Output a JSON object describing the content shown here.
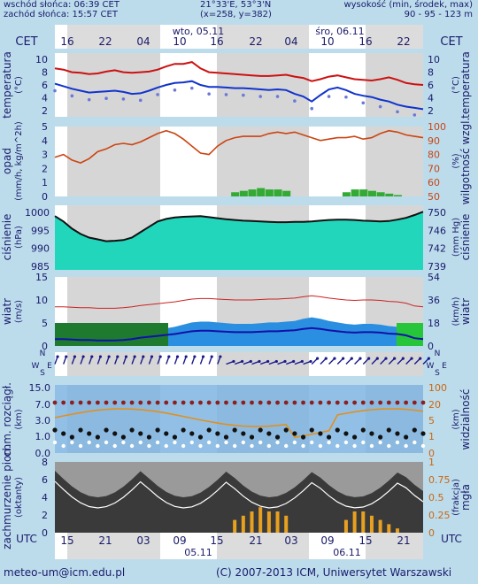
{
  "header": {
    "sunrise": "wschód słońca: 06:39 CET",
    "sunset": "zachód słońca: 15:57 CET",
    "coords": "21°33'E, 53°3'N",
    "grid": "(x=258, y=382)",
    "elevation_label": "wysokość (min, środek, max)",
    "elevation_values": "90 - 95 - 123 m"
  },
  "timezone_top": "CET",
  "timezone_bottom": "UTC",
  "top_hour_labels": [
    "16",
    "22",
    "04",
    "10",
    "16",
    "22",
    "04",
    "10",
    "16",
    "22"
  ],
  "top_date_labels": [
    "wto, 05.11",
    "śro, 06.11"
  ],
  "bottom_hour_labels": [
    "15",
    "21",
    "03",
    "09",
    "15",
    "21",
    "03",
    "09",
    "15",
    "21"
  ],
  "bottom_date_labels": [
    "05.11",
    "06.11"
  ],
  "panels": {
    "temperature": {
      "left_label": "temperatura",
      "left_unit": "(°C)",
      "right_label": "temperatura",
      "right_unit": "(°C)",
      "ticks": [
        "10",
        "8",
        "6",
        "4",
        "2"
      ]
    },
    "precip": {
      "left_label": "opad",
      "left_unit": "(mm/h, kg/m^2h)",
      "right_label": "wilgotność wzgl.",
      "right_unit": "(%)",
      "ticks_left": [
        "5",
        "4",
        "3",
        "2",
        "1",
        "0"
      ],
      "ticks_right": [
        "100",
        "90",
        "80",
        "70",
        "60",
        "50"
      ]
    },
    "pressure": {
      "left_label": "ciśnienie",
      "left_unit": "(hPa)",
      "right_label": "ciśnienie",
      "right_unit": "(mm Hg)",
      "ticks_left": [
        "1000",
        "995",
        "990",
        "985"
      ],
      "ticks_right": [
        "750",
        "746",
        "742",
        "739"
      ]
    },
    "wind": {
      "left_label": "wiatr",
      "left_unit": "(m/s)",
      "right_label": "wiatr",
      "right_unit": "(km/h)",
      "ticks_left": [
        "15",
        "10",
        "5",
        "0"
      ],
      "ticks_right": [
        "54",
        "36",
        "18",
        "0"
      ]
    },
    "winddir": {
      "letters": [
        "W",
        "S",
        "N",
        "E"
      ]
    },
    "cloudbase": {
      "left_label": "chm. rozciągł.",
      "left_unit": "(km)",
      "right_label": "widzialność",
      "right_unit": "(km)",
      "ticks_left": [
        "15.0",
        "7.0",
        "3.0",
        "1.0",
        "0.0"
      ],
      "ticks_right": [
        "100",
        "20",
        "5",
        "1",
        "0"
      ]
    },
    "clouds": {
      "left_label": "zachmurzenie pion.",
      "left_unit": "(oktanty)",
      "right_label": "mgła",
      "right_unit": "(frakcja)",
      "ticks_left": [
        "8",
        "6",
        "4",
        "2",
        "0"
      ],
      "ticks_right": [
        "1",
        "0.75",
        "0.5",
        "0.25",
        "0"
      ]
    }
  },
  "footer": {
    "email": "meteo-um@icm.edu.pl",
    "copyright": "(C) 2007-2013 ICM, Uniwersytet Warszawski"
  },
  "series": {
    "temp_max": [
      8.6,
      8.4,
      8.0,
      7.9,
      7.7,
      7.8,
      8.1,
      8.3,
      8.0,
      7.9,
      8.0,
      8.1,
      8.4,
      8.9,
      9.3,
      9.3,
      9.6,
      8.6,
      8.0,
      7.9,
      7.8,
      7.7,
      7.6,
      7.5,
      7.4,
      7.4,
      7.5,
      7.6,
      7.3,
      7.1,
      6.6,
      6.9,
      7.3,
      7.5,
      7.2,
      6.9,
      6.8,
      6.7,
      6.9,
      7.2,
      6.8,
      6.3,
      6.1,
      6.0
    ],
    "temp_mean": [
      6.2,
      5.8,
      5.4,
      5.1,
      4.8,
      4.9,
      5.0,
      5.1,
      4.9,
      4.6,
      4.7,
      5.1,
      5.6,
      6.0,
      6.3,
      6.4,
      6.6,
      6.0,
      5.7,
      5.7,
      5.6,
      5.5,
      5.5,
      5.4,
      5.3,
      5.2,
      5.3,
      5.2,
      4.6,
      4.2,
      3.4,
      4.4,
      5.3,
      5.6,
      5.2,
      4.6,
      4.3,
      4.1,
      3.7,
      3.4,
      2.9,
      2.6,
      2.4,
      2.2
    ],
    "humidity": [
      78,
      80,
      76,
      74,
      77,
      82,
      84,
      87,
      88,
      87,
      89,
      92,
      95,
      97,
      95,
      91,
      86,
      81,
      80,
      86,
      90,
      92,
      93,
      93,
      93,
      95,
      96,
      95,
      96,
      94,
      92,
      90,
      91,
      92,
      92,
      93,
      91,
      92,
      95,
      97,
      96,
      94,
      93,
      92
    ],
    "precip": [
      0,
      0,
      0,
      0,
      0,
      0,
      0,
      0,
      0,
      0,
      0,
      0,
      0,
      0,
      0,
      0,
      0,
      0,
      0,
      0,
      0,
      0.3,
      0.4,
      0.5,
      0.6,
      0.5,
      0.5,
      0.4,
      0,
      0,
      0,
      0,
      0,
      0,
      0.3,
      0.5,
      0.5,
      0.4,
      0.3,
      0.2,
      0.1,
      0,
      0,
      0
    ],
    "pressure": [
      999,
      997.5,
      995.5,
      994,
      993,
      992.5,
      992,
      992.1,
      992.3,
      993,
      994.5,
      996,
      997.5,
      998.2,
      998.6,
      998.8,
      998.9,
      999,
      998.7,
      998.4,
      998.1,
      997.9,
      997.7,
      997.6,
      997.5,
      997.4,
      997.3,
      997.3,
      997.4,
      997.4,
      997.5,
      997.7,
      997.9,
      998,
      998,
      997.9,
      997.7,
      997.6,
      997.5,
      997.6,
      998,
      998.5,
      999.3,
      1000.2
    ],
    "wind_mean": [
      1.5,
      1.5,
      1.4,
      1.3,
      1.3,
      1.2,
      1.2,
      1.2,
      1.3,
      1.5,
      1.8,
      2.0,
      2.2,
      2.4,
      2.6,
      2.9,
      3.2,
      3.3,
      3.3,
      3.2,
      3.1,
      3.0,
      3.0,
      3.0,
      3.1,
      3.2,
      3.2,
      3.3,
      3.4,
      3.7,
      3.9,
      3.7,
      3.4,
      3.2,
      3.0,
      2.9,
      3.0,
      3.0,
      2.9,
      2.7,
      2.6,
      2.3,
      1.7,
      1.5
    ]
  }
}
